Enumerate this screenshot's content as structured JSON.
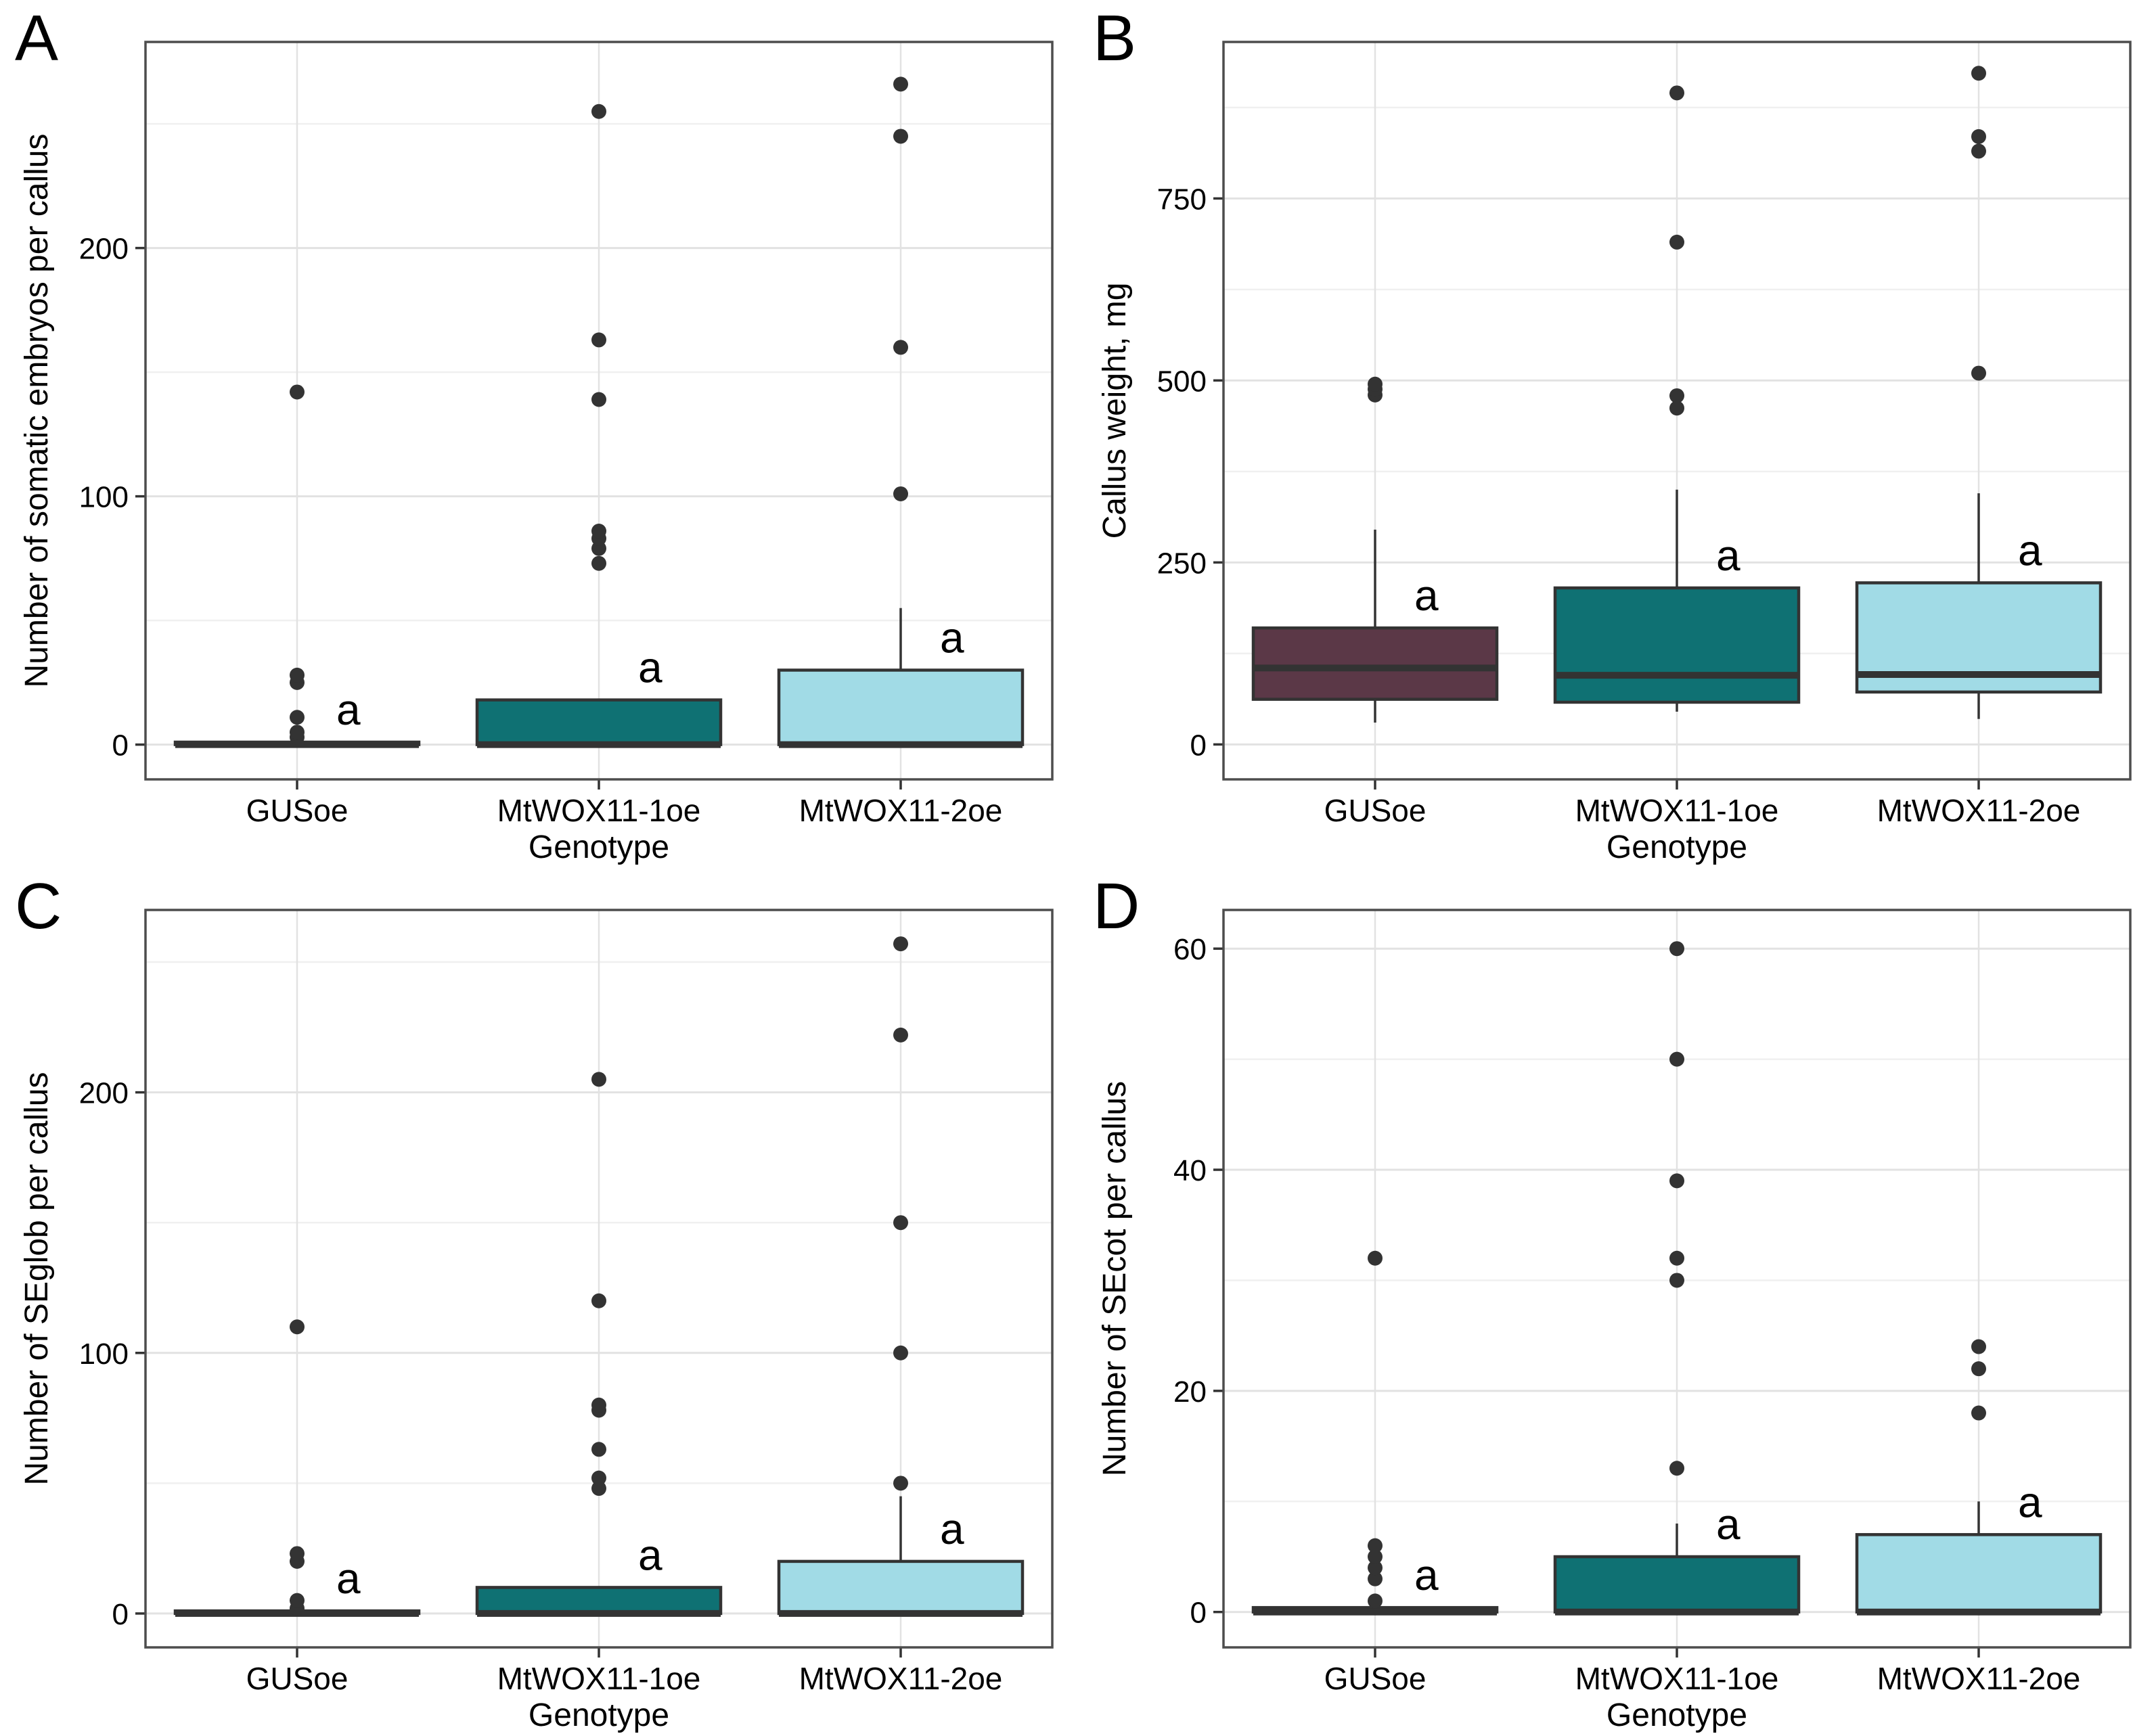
{
  "chart_data": [
    {
      "panel": "A",
      "type": "boxplot",
      "title": "",
      "ylabel": "Number of somatic embryos per callus",
      "xlabel": "Genotype",
      "categories": [
        "GUSoe",
        "MtWOX11-1oe",
        "MtWOX11-2oe"
      ],
      "yticks": [
        0,
        100,
        200
      ],
      "yminor": [
        50,
        150,
        250
      ],
      "ylim": [
        -14,
        283
      ],
      "grid": "on",
      "groups": [
        {
          "label": "GUSoe",
          "color": "#5B3847",
          "whisker_low": 0,
          "q1": 0,
          "median": 0,
          "q3": 1,
          "whisker_high": 1,
          "outliers": [
            3,
            5,
            11,
            25,
            28,
            142
          ],
          "sig": "a"
        },
        {
          "label": "MtWOX11-1oe",
          "color": "#0F7173",
          "whisker_low": 0,
          "q1": 0,
          "median": 0,
          "q3": 18,
          "whisker_high": 18,
          "outliers": [
            73,
            79,
            83,
            86,
            139,
            163,
            255
          ],
          "sig": "a"
        },
        {
          "label": "MtWOX11-2oe",
          "color": "#A1DBE6",
          "whisker_low": 0,
          "q1": 0,
          "median": 0,
          "q3": 30,
          "whisker_high": 55,
          "outliers": [
            101,
            160,
            245,
            266
          ],
          "sig": "a"
        }
      ]
    },
    {
      "panel": "B",
      "type": "boxplot",
      "title": "",
      "ylabel": "Callus weight, mg",
      "xlabel": "Genotype",
      "categories": [
        "GUSoe",
        "MtWOX11-1oe",
        "MtWOX11-2oe"
      ],
      "yticks": [
        0,
        250,
        500,
        750
      ],
      "yminor": [
        125,
        375,
        625,
        875
      ],
      "ylim": [
        -48,
        965
      ],
      "grid": "on",
      "groups": [
        {
          "label": "GUSoe",
          "color": "#5B3847",
          "whisker_low": 30,
          "q1": 62,
          "median": 105,
          "q3": 160,
          "whisker_high": 295,
          "outliers": [
            480,
            488,
            495
          ],
          "sig": "a"
        },
        {
          "label": "MtWOX11-1oe",
          "color": "#0F7173",
          "whisker_low": 45,
          "q1": 58,
          "median": 95,
          "q3": 215,
          "whisker_high": 350,
          "outliers": [
            462,
            479,
            690,
            895
          ],
          "sig": "a"
        },
        {
          "label": "MtWOX11-2oe",
          "color": "#A1DBE6",
          "whisker_low": 35,
          "q1": 72,
          "median": 96,
          "q3": 222,
          "whisker_high": 345,
          "outliers": [
            510,
            815,
            835,
            922
          ],
          "sig": "a"
        }
      ]
    },
    {
      "panel": "C",
      "type": "boxplot",
      "title": "",
      "ylabel": "Number of SEglob per callus",
      "xlabel": "Genotype",
      "categories": [
        "GUSoe",
        "MtWOX11-1oe",
        "MtWOX11-2oe"
      ],
      "yticks": [
        0,
        100,
        200
      ],
      "yminor": [
        50,
        150,
        250
      ],
      "ylim": [
        -13,
        270
      ],
      "grid": "on",
      "groups": [
        {
          "label": "GUSoe",
          "color": "#5B3847",
          "whisker_low": 0,
          "q1": 0,
          "median": 0,
          "q3": 1,
          "whisker_high": 1,
          "outliers": [
            2,
            5,
            20,
            23,
            110
          ],
          "sig": "a"
        },
        {
          "label": "MtWOX11-1oe",
          "color": "#0F7173",
          "whisker_low": 0,
          "q1": 0,
          "median": 0,
          "q3": 10,
          "whisker_high": 10,
          "outliers": [
            48,
            52,
            63,
            78,
            80,
            120,
            205
          ],
          "sig": "a"
        },
        {
          "label": "MtWOX11-2oe",
          "color": "#A1DBE6",
          "whisker_low": 0,
          "q1": 0,
          "median": 0,
          "q3": 20,
          "whisker_high": 45,
          "outliers": [
            50,
            100,
            150,
            222,
            257
          ],
          "sig": "a"
        }
      ]
    },
    {
      "panel": "D",
      "type": "boxplot",
      "title": "",
      "ylabel": "Number of SEcot per callus",
      "xlabel": "Genotype",
      "categories": [
        "GUSoe",
        "MtWOX11-1oe",
        "MtWOX11-2oe"
      ],
      "yticks": [
        0,
        20,
        40,
        60
      ],
      "yminor": [
        10,
        30,
        50
      ],
      "ylim": [
        -3.2,
        63.5
      ],
      "grid": "on",
      "groups": [
        {
          "label": "GUSoe",
          "color": "#5B3847",
          "whisker_low": 0,
          "q1": 0,
          "median": 0,
          "q3": 0.4,
          "whisker_high": 0.4,
          "outliers": [
            1,
            3,
            4,
            5,
            6,
            32
          ],
          "sig": "a"
        },
        {
          "label": "MtWOX11-1oe",
          "color": "#0F7173",
          "whisker_low": 0,
          "q1": 0,
          "median": 0,
          "q3": 5,
          "whisker_high": 8,
          "outliers": [
            13,
            30,
            32,
            39,
            50,
            60
          ],
          "sig": "a"
        },
        {
          "label": "MtWOX11-2oe",
          "color": "#A1DBE6",
          "whisker_low": 0,
          "q1": 0,
          "median": 0,
          "q3": 7,
          "whisker_high": 10,
          "outliers": [
            18,
            22,
            24
          ],
          "sig": "a"
        }
      ]
    }
  ],
  "style": {
    "point_color": "#333333",
    "box_stroke": "#333333",
    "median_color": "#333333",
    "grid_major": "#E2E2E2",
    "grid_minor": "#F0F0F0",
    "panel_border": "#4D4D4D",
    "text_color": "#000000"
  }
}
